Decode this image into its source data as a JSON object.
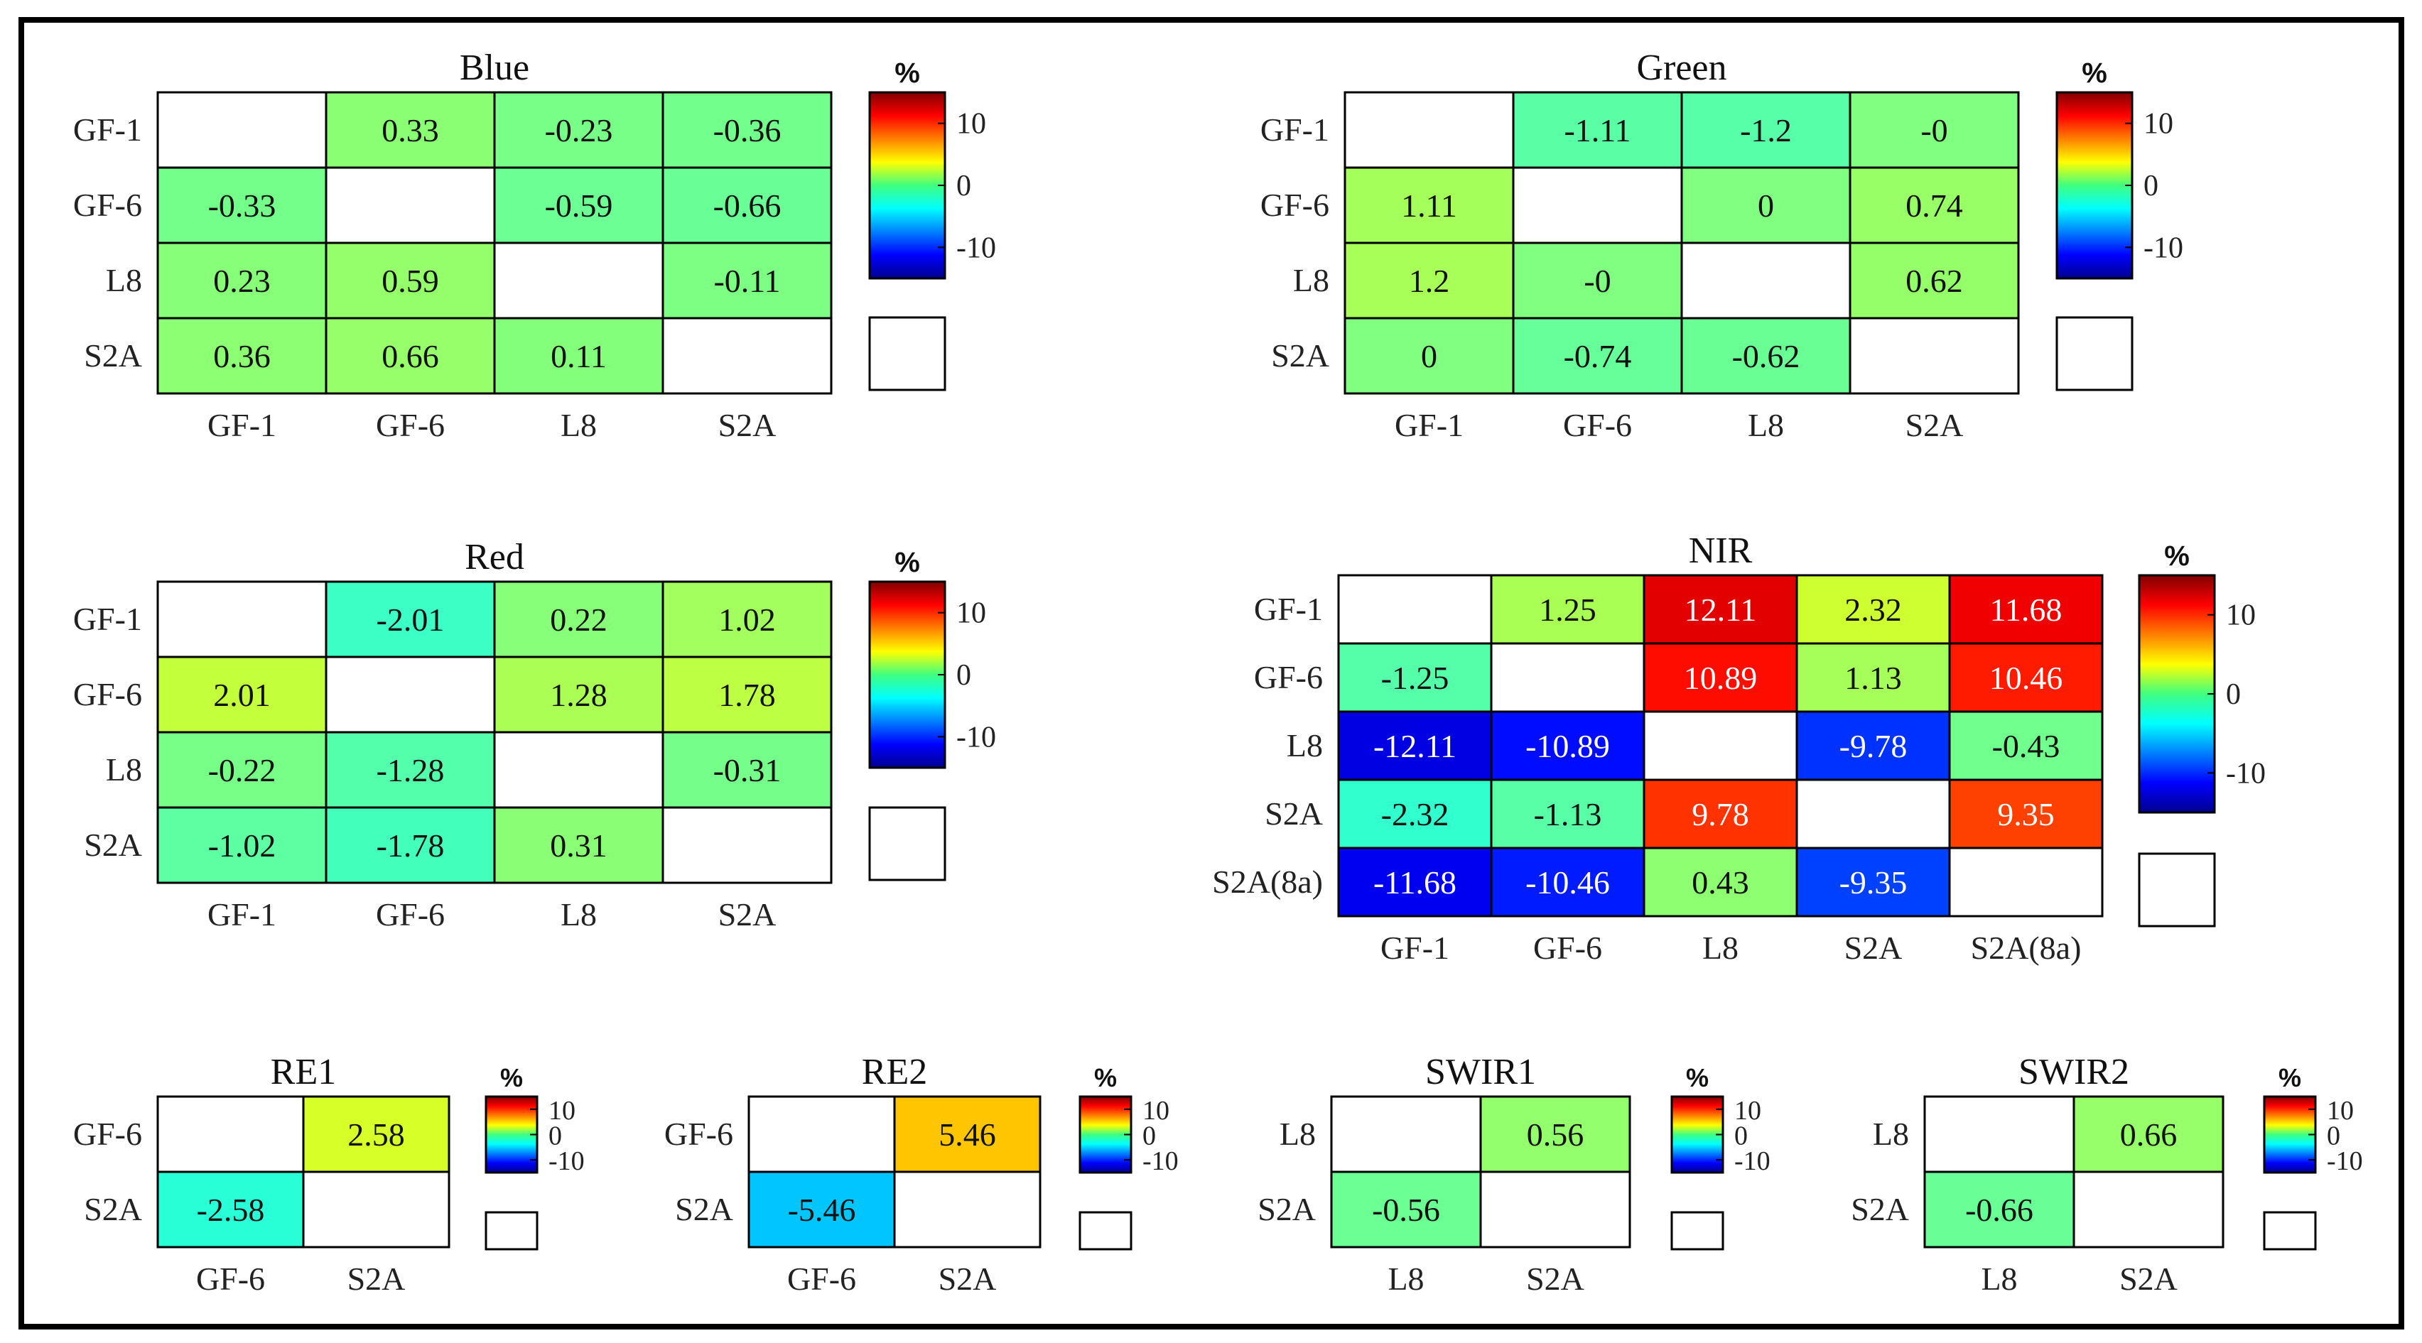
{
  "colorbar": {
    "unit": "%",
    "ticks": [
      "10",
      "0",
      "-10"
    ],
    "range": [
      -15,
      15
    ]
  },
  "colors": {
    "frame": "#000000",
    "empty_cell": "#ffffff",
    "text_dark": "#111111",
    "text_light": "#ffffff"
  },
  "chart_data": [
    {
      "type": "heatmap",
      "title": "Blue",
      "rows": [
        "GF-1",
        "GF-6",
        "L8",
        "S2A"
      ],
      "cols": [
        "GF-1",
        "GF-6",
        "L8",
        "S2A"
      ],
      "values": [
        [
          null,
          "0.33",
          "-0.23",
          "-0.36"
        ],
        [
          "-0.33",
          null,
          "-0.59",
          "-0.66"
        ],
        [
          "0.23",
          "0.59",
          null,
          "-0.11"
        ],
        [
          "0.36",
          "0.66",
          "0.11",
          null
        ]
      ]
    },
    {
      "type": "heatmap",
      "title": "Green",
      "rows": [
        "GF-1",
        "GF-6",
        "L8",
        "S2A"
      ],
      "cols": [
        "GF-1",
        "GF-6",
        "L8",
        "S2A"
      ],
      "values": [
        [
          null,
          "-1.11",
          "-1.2",
          "-0"
        ],
        [
          "1.11",
          null,
          "0",
          "0.74"
        ],
        [
          "1.2",
          "-0",
          null,
          "0.62"
        ],
        [
          "0",
          "-0.74",
          "-0.62",
          null
        ]
      ]
    },
    {
      "type": "heatmap",
      "title": "Red",
      "rows": [
        "GF-1",
        "GF-6",
        "L8",
        "S2A"
      ],
      "cols": [
        "GF-1",
        "GF-6",
        "L8",
        "S2A"
      ],
      "values": [
        [
          null,
          "-2.01",
          "0.22",
          "1.02"
        ],
        [
          "2.01",
          null,
          "1.28",
          "1.78"
        ],
        [
          "-0.22",
          "-1.28",
          null,
          "-0.31"
        ],
        [
          "-1.02",
          "-1.78",
          "0.31",
          null
        ]
      ]
    },
    {
      "type": "heatmap",
      "title": "NIR",
      "rows": [
        "GF-1",
        "GF-6",
        "L8",
        "S2A",
        "S2A(8a)"
      ],
      "cols": [
        "GF-1",
        "GF-6",
        "L8",
        "S2A",
        "S2A(8a)"
      ],
      "values": [
        [
          null,
          "1.25",
          "12.11",
          "2.32",
          "11.68"
        ],
        [
          "-1.25",
          null,
          "10.89",
          "1.13",
          "10.46"
        ],
        [
          "-12.11",
          "-10.89",
          null,
          "-9.78",
          "-0.43"
        ],
        [
          "-2.32",
          "-1.13",
          "9.78",
          null,
          "9.35"
        ],
        [
          "-11.68",
          "-10.46",
          "0.43",
          "-9.35",
          null
        ]
      ]
    },
    {
      "type": "heatmap",
      "title": "RE1",
      "rows": [
        "GF-6",
        "S2A"
      ],
      "cols": [
        "GF-6",
        "S2A"
      ],
      "values": [
        [
          null,
          "2.58"
        ],
        [
          "-2.58",
          null
        ]
      ]
    },
    {
      "type": "heatmap",
      "title": "RE2",
      "rows": [
        "GF-6",
        "S2A"
      ],
      "cols": [
        "GF-6",
        "S2A"
      ],
      "values": [
        [
          null,
          "5.46"
        ],
        [
          "-5.46",
          null
        ]
      ]
    },
    {
      "type": "heatmap",
      "title": "SWIR1",
      "rows": [
        "L8",
        "S2A"
      ],
      "cols": [
        "L8",
        "S2A"
      ],
      "values": [
        [
          null,
          "0.56"
        ],
        [
          "-0.56",
          null
        ]
      ]
    },
    {
      "type": "heatmap",
      "title": "SWIR2",
      "rows": [
        "L8",
        "S2A"
      ],
      "cols": [
        "L8",
        "S2A"
      ],
      "values": [
        [
          null,
          "0.66"
        ],
        [
          "-0.66",
          null
        ]
      ]
    }
  ]
}
